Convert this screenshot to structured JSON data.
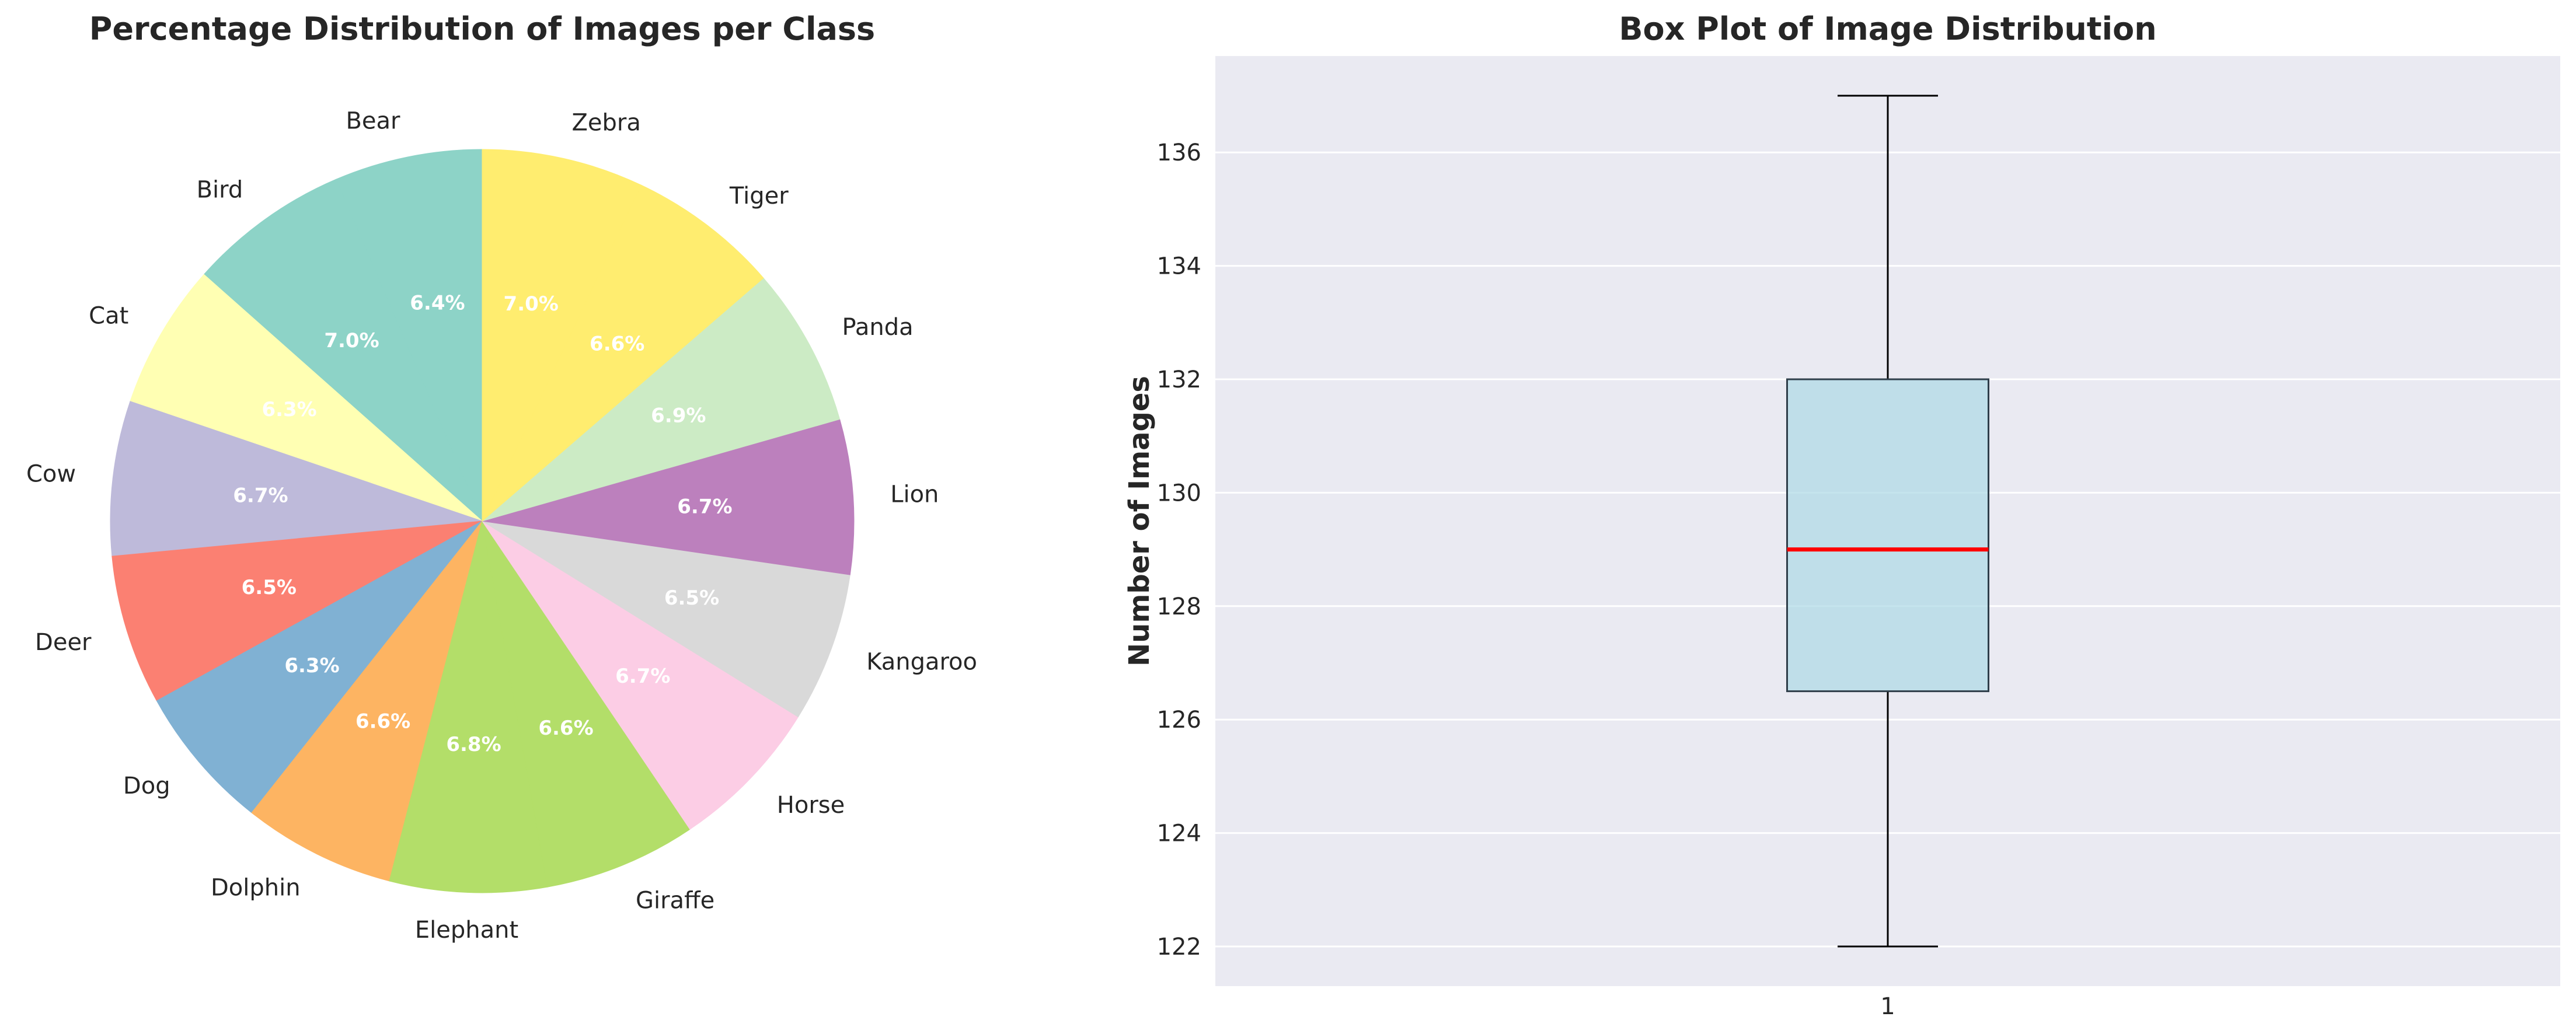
{
  "chart_data": [
    {
      "type": "pie",
      "title": "Percentage Distribution of Images per Class",
      "start_angle_deg": 90,
      "direction": "counterclockwise",
      "slices": [
        {
          "label": "Bear",
          "pct_label": "6.4%",
          "value": 6.4,
          "color": "#8dd3c7"
        },
        {
          "label": "Bird",
          "pct_label": "7.0%",
          "value": 7.0,
          "color": "#8dd3c7"
        },
        {
          "label": "Cat",
          "pct_label": "6.3%",
          "value": 6.3,
          "color": "#ffffb3"
        },
        {
          "label": "Cow",
          "pct_label": "6.7%",
          "value": 6.7,
          "color": "#bebada"
        },
        {
          "label": "Deer",
          "pct_label": "6.5%",
          "value": 6.5,
          "color": "#fb8072"
        },
        {
          "label": "Dog",
          "pct_label": "6.3%",
          "value": 6.3,
          "color": "#80b1d3"
        },
        {
          "label": "Dolphin",
          "pct_label": "6.6%",
          "value": 6.6,
          "color": "#fdb462"
        },
        {
          "label": "Elephant",
          "pct_label": "6.8%",
          "value": 6.8,
          "color": "#b3de69"
        },
        {
          "label": "Giraffe",
          "pct_label": "6.6%",
          "value": 6.6,
          "color": "#b3de69"
        },
        {
          "label": "Horse",
          "pct_label": "6.7%",
          "value": 6.7,
          "color": "#fccde5"
        },
        {
          "label": "Kangaroo",
          "pct_label": "6.5%",
          "value": 6.5,
          "color": "#d9d9d9"
        },
        {
          "label": "Lion",
          "pct_label": "6.7%",
          "value": 6.7,
          "color": "#bc80bd"
        },
        {
          "label": "Panda",
          "pct_label": "6.9%",
          "value": 6.9,
          "color": "#ccebc5"
        },
        {
          "label": "Tiger",
          "pct_label": "6.6%",
          "value": 6.6,
          "color": "#ffed6f"
        },
        {
          "label": "Zebra",
          "pct_label": "7.0%",
          "value": 7.0,
          "color": "#ffed6f"
        }
      ]
    },
    {
      "type": "box",
      "title": "Box Plot of Image Distribution",
      "xlabel": "",
      "ylabel": "Number of Images",
      "categories": [
        "1"
      ],
      "ylim": [
        121.3,
        137.7
      ],
      "yticks": [
        122,
        124,
        126,
        128,
        130,
        132,
        134,
        136
      ],
      "grid": true,
      "box": {
        "min": 122,
        "q1": 126.5,
        "median": 129,
        "q3": 132,
        "max": 137
      },
      "colors": {
        "box_fill": "#add8e6",
        "median": "#ff0000",
        "background": "#eaeaf2"
      }
    }
  ]
}
